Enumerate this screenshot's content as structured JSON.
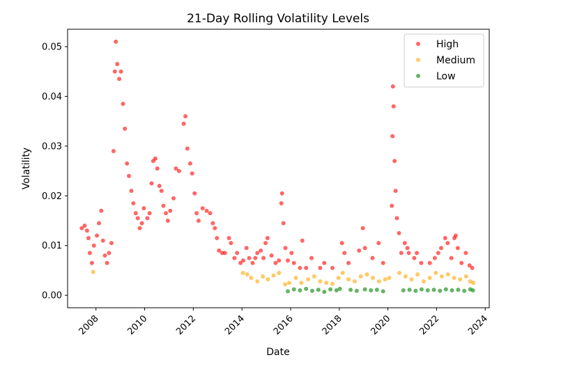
{
  "chart_data": {
    "type": "scatter",
    "title": "21-Day Rolling Volatility Levels",
    "xlabel": "Date",
    "ylabel": "Volatility",
    "xlim": [
      "2006-11-01",
      "2024-03-01"
    ],
    "ylim": [
      -0.0025,
      0.0535
    ],
    "x_ticks": [
      "2008",
      "2010",
      "2012",
      "2014",
      "2016",
      "2018",
      "2020",
      "2022",
      "2024"
    ],
    "y_ticks": [
      "0.00",
      "0.01",
      "0.02",
      "0.03",
      "0.04",
      "0.05"
    ],
    "grid": false,
    "legend_position": "top-right",
    "series": [
      {
        "name": "High",
        "color": "#ff0000",
        "points": [
          [
            "2007-06-01",
            0.0135
          ],
          [
            "2007-07-15",
            0.014
          ],
          [
            "2007-08-20",
            0.013
          ],
          [
            "2007-09-10",
            0.0115
          ],
          [
            "2007-10-01",
            0.0085
          ],
          [
            "2007-11-01",
            0.0065
          ],
          [
            "2007-12-01",
            0.01
          ],
          [
            "2008-01-15",
            0.012
          ],
          [
            "2008-02-15",
            0.0145
          ],
          [
            "2008-03-20",
            0.017
          ],
          [
            "2008-04-15",
            0.011
          ],
          [
            "2008-05-15",
            0.008
          ],
          [
            "2008-06-15",
            0.0065
          ],
          [
            "2008-07-15",
            0.0085
          ],
          [
            "2008-08-20",
            0.0105
          ],
          [
            "2008-09-20",
            0.029
          ],
          [
            "2008-10-10",
            0.045
          ],
          [
            "2008-10-25",
            0.051
          ],
          [
            "2008-11-15",
            0.0465
          ],
          [
            "2008-12-15",
            0.0435
          ],
          [
            "2009-01-10",
            0.045
          ],
          [
            "2009-02-10",
            0.0385
          ],
          [
            "2009-03-10",
            0.0335
          ],
          [
            "2009-04-10",
            0.0265
          ],
          [
            "2009-05-10",
            0.024
          ],
          [
            "2009-06-15",
            0.021
          ],
          [
            "2009-07-15",
            0.0185
          ],
          [
            "2009-08-20",
            0.0165
          ],
          [
            "2009-09-20",
            0.0155
          ],
          [
            "2009-10-20",
            0.0135
          ],
          [
            "2009-11-20",
            0.0145
          ],
          [
            "2009-12-20",
            0.0175
          ],
          [
            "2010-02-10",
            0.0155
          ],
          [
            "2010-03-15",
            0.0165
          ],
          [
            "2010-04-15",
            0.0225
          ],
          [
            "2010-05-10",
            0.027
          ],
          [
            "2010-06-10",
            0.0275
          ],
          [
            "2010-07-10",
            0.0255
          ],
          [
            "2010-08-10",
            0.022
          ],
          [
            "2010-09-10",
            0.021
          ],
          [
            "2010-10-10",
            0.018
          ],
          [
            "2010-11-15",
            0.0165
          ],
          [
            "2010-12-15",
            0.015
          ],
          [
            "2011-01-20",
            0.017
          ],
          [
            "2011-03-10",
            0.0195
          ],
          [
            "2011-04-15",
            0.0255
          ],
          [
            "2011-06-01",
            0.025
          ],
          [
            "2011-08-10",
            0.0345
          ],
          [
            "2011-09-05",
            0.036
          ],
          [
            "2011-10-05",
            0.0295
          ],
          [
            "2011-11-15",
            0.0265
          ],
          [
            "2011-12-15",
            0.0245
          ],
          [
            "2012-01-20",
            0.0205
          ],
          [
            "2012-02-20",
            0.0165
          ],
          [
            "2012-03-20",
            0.015
          ],
          [
            "2012-05-20",
            0.0175
          ],
          [
            "2012-07-20",
            0.017
          ],
          [
            "2012-09-10",
            0.0165
          ],
          [
            "2012-10-20",
            0.0145
          ],
          [
            "2012-11-20",
            0.0135
          ],
          [
            "2012-12-20",
            0.0115
          ],
          [
            "2013-01-20",
            0.009
          ],
          [
            "2013-03-10",
            0.0085
          ],
          [
            "2013-04-20",
            0.0085
          ],
          [
            "2013-06-20",
            0.0115
          ],
          [
            "2013-07-20",
            0.0105
          ],
          [
            "2013-09-10",
            0.0075
          ],
          [
            "2013-10-20",
            0.0085
          ],
          [
            "2013-12-10",
            0.0065
          ],
          [
            "2014-01-20",
            0.007
          ],
          [
            "2014-03-10",
            0.0095
          ],
          [
            "2014-04-20",
            0.0075
          ],
          [
            "2014-06-10",
            0.0065
          ],
          [
            "2014-07-20",
            0.0075
          ],
          [
            "2014-08-20",
            0.0085
          ],
          [
            "2014-10-10",
            0.009
          ],
          [
            "2014-11-20",
            0.0075
          ],
          [
            "2014-12-20",
            0.0105
          ],
          [
            "2015-01-20",
            0.0115
          ],
          [
            "2015-03-20",
            0.008
          ],
          [
            "2015-05-20",
            0.0065
          ],
          [
            "2015-07-10",
            0.007
          ],
          [
            "2015-08-15",
            0.0185
          ],
          [
            "2015-08-25",
            0.0205
          ],
          [
            "2015-09-15",
            0.0145
          ],
          [
            "2015-10-15",
            0.0095
          ],
          [
            "2015-11-20",
            0.007
          ],
          [
            "2016-01-15",
            0.0085
          ],
          [
            "2016-02-20",
            0.0065
          ],
          [
            "2016-05-20",
            0.0055
          ],
          [
            "2016-06-25",
            0.011
          ],
          [
            "2016-08-20",
            0.0055
          ],
          [
            "2016-11-10",
            0.0075
          ],
          [
            "2017-03-20",
            0.0055
          ],
          [
            "2017-05-20",
            0.0065
          ],
          [
            "2017-09-20",
            0.0055
          ],
          [
            "2018-02-10",
            0.0105
          ],
          [
            "2018-03-20",
            0.0085
          ],
          [
            "2018-05-20",
            0.0065
          ],
          [
            "2018-10-25",
            0.009
          ],
          [
            "2018-12-20",
            0.0135
          ],
          [
            "2019-01-20",
            0.0095
          ],
          [
            "2019-05-15",
            0.0075
          ],
          [
            "2019-08-15",
            0.0105
          ],
          [
            "2019-10-20",
            0.0065
          ],
          [
            "2020-02-28",
            0.018
          ],
          [
            "2020-03-10",
            0.032
          ],
          [
            "2020-03-16",
            0.042
          ],
          [
            "2020-03-25",
            0.038
          ],
          [
            "2020-04-10",
            0.027
          ],
          [
            "2020-04-25",
            0.021
          ],
          [
            "2020-05-15",
            0.0155
          ],
          [
            "2020-06-15",
            0.0125
          ],
          [
            "2020-07-20",
            0.0085
          ],
          [
            "2020-09-10",
            0.0105
          ],
          [
            "2020-10-20",
            0.0095
          ],
          [
            "2020-11-10",
            0.0085
          ],
          [
            "2021-01-30",
            0.0075
          ],
          [
            "2021-03-10",
            0.0085
          ],
          [
            "2021-05-15",
            0.0065
          ],
          [
            "2021-09-20",
            0.0065
          ],
          [
            "2021-12-05",
            0.0075
          ],
          [
            "2022-01-25",
            0.0085
          ],
          [
            "2022-03-10",
            0.0095
          ],
          [
            "2022-05-10",
            0.0115
          ],
          [
            "2022-06-15",
            0.0105
          ],
          [
            "2022-08-10",
            0.0075
          ],
          [
            "2022-09-25",
            0.0115
          ],
          [
            "2022-10-15",
            0.012
          ],
          [
            "2022-11-15",
            0.0095
          ],
          [
            "2023-01-10",
            0.0065
          ],
          [
            "2023-03-15",
            0.0085
          ],
          [
            "2023-05-10",
            0.006
          ],
          [
            "2023-06-20",
            0.0055
          ]
        ]
      },
      {
        "name": "Medium",
        "color": "#ffa500",
        "points": [
          [
            "2007-11-20",
            0.0047
          ],
          [
            "2014-01-15",
            0.0045
          ],
          [
            "2014-03-20",
            0.0042
          ],
          [
            "2014-05-20",
            0.0035
          ],
          [
            "2014-08-20",
            0.0028
          ],
          [
            "2014-11-10",
            0.0038
          ],
          [
            "2015-01-25",
            0.0032
          ],
          [
            "2015-04-20",
            0.004
          ],
          [
            "2015-07-10",
            0.0045
          ],
          [
            "2015-10-10",
            0.0022
          ],
          [
            "2015-12-10",
            0.0025
          ],
          [
            "2016-03-20",
            0.0035
          ],
          [
            "2016-06-10",
            0.0025
          ],
          [
            "2016-09-20",
            0.0032
          ],
          [
            "2016-12-20",
            0.0038
          ],
          [
            "2017-03-20",
            0.0028
          ],
          [
            "2017-06-20",
            0.0025
          ],
          [
            "2017-09-20",
            0.0023
          ],
          [
            "2017-12-20",
            0.0035
          ],
          [
            "2018-02-20",
            0.0045
          ],
          [
            "2018-05-20",
            0.0032
          ],
          [
            "2018-08-20",
            0.0028
          ],
          [
            "2018-11-20",
            0.0038
          ],
          [
            "2019-02-20",
            0.0042
          ],
          [
            "2019-05-20",
            0.0035
          ],
          [
            "2019-08-20",
            0.0028
          ],
          [
            "2019-11-20",
            0.0032
          ],
          [
            "2020-01-20",
            0.0035
          ],
          [
            "2020-06-20",
            0.0045
          ],
          [
            "2020-09-20",
            0.0038
          ],
          [
            "2020-12-20",
            0.0032
          ],
          [
            "2021-03-20",
            0.0042
          ],
          [
            "2021-06-20",
            0.0028
          ],
          [
            "2021-09-20",
            0.0035
          ],
          [
            "2021-12-20",
            0.0045
          ],
          [
            "2022-03-20",
            0.0038
          ],
          [
            "2022-06-20",
            0.0042
          ],
          [
            "2022-09-20",
            0.0035
          ],
          [
            "2022-12-20",
            0.0032
          ],
          [
            "2023-03-20",
            0.0038
          ],
          [
            "2023-05-20",
            0.0028
          ],
          [
            "2023-07-05",
            0.0025
          ]
        ]
      },
      {
        "name": "Low",
        "color": "#008000",
        "points": [
          [
            "2015-11-20",
            0.0008
          ],
          [
            "2016-02-20",
            0.0012
          ],
          [
            "2016-05-20",
            0.001
          ],
          [
            "2016-08-20",
            0.0013
          ],
          [
            "2016-11-20",
            0.0009
          ],
          [
            "2017-02-20",
            0.0011
          ],
          [
            "2017-05-20",
            0.0007
          ],
          [
            "2017-08-20",
            0.0012
          ],
          [
            "2017-11-20",
            0.001
          ],
          [
            "2018-01-10",
            0.0013
          ],
          [
            "2018-06-20",
            0.0011
          ],
          [
            "2018-09-20",
            0.0009
          ],
          [
            "2019-01-20",
            0.0012
          ],
          [
            "2019-04-20",
            0.001
          ],
          [
            "2019-07-20",
            0.0011
          ],
          [
            "2019-10-20",
            0.0008
          ],
          [
            "2020-08-20",
            0.001
          ],
          [
            "2020-11-20",
            0.0011
          ],
          [
            "2021-02-20",
            0.0009
          ],
          [
            "2021-05-20",
            0.0012
          ],
          [
            "2021-08-20",
            0.001
          ],
          [
            "2021-11-20",
            0.0011
          ],
          [
            "2022-02-20",
            0.0009
          ],
          [
            "2022-05-20",
            0.0012
          ],
          [
            "2022-08-20",
            0.001
          ],
          [
            "2022-11-20",
            0.0011
          ],
          [
            "2023-02-20",
            0.0009
          ],
          [
            "2023-05-20",
            0.0012
          ],
          [
            "2023-07-01",
            0.001
          ]
        ]
      }
    ]
  }
}
